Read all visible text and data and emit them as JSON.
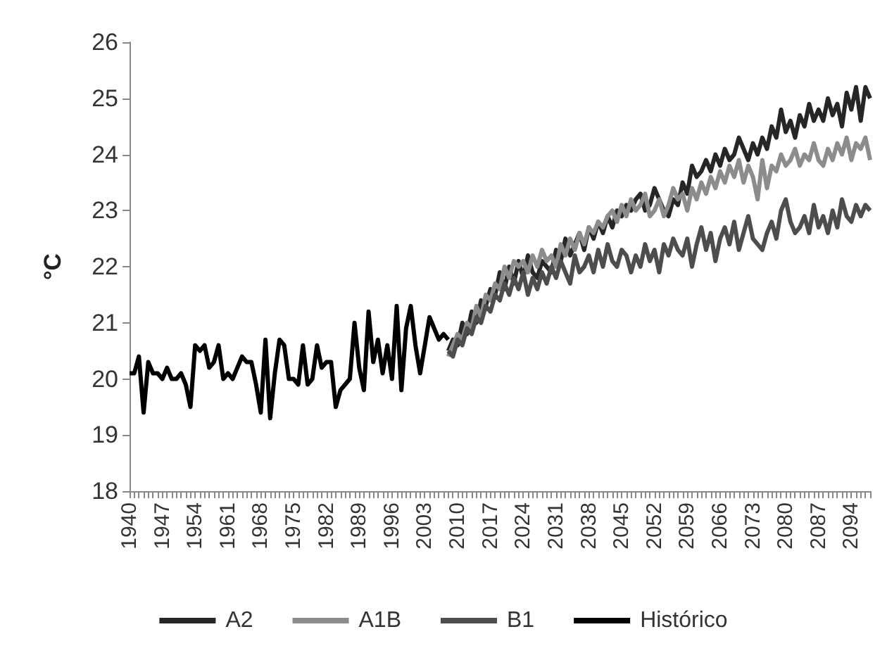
{
  "chart_data": {
    "type": "line",
    "ylabel": "°C",
    "ylim": [
      18,
      26
    ],
    "yticks": [
      18,
      19,
      20,
      21,
      22,
      23,
      24,
      25,
      26
    ],
    "grid": false,
    "legend": "bottom",
    "categories": [
      "1940",
      null,
      null,
      null,
      null,
      null,
      null,
      "1947",
      null,
      null,
      null,
      null,
      null,
      null,
      "1954",
      null,
      null,
      null,
      null,
      null,
      null,
      "1961",
      null,
      null,
      null,
      null,
      null,
      null,
      "1968",
      null,
      null,
      null,
      null,
      null,
      null,
      "1975",
      null,
      null,
      null,
      null,
      null,
      null,
      "1982",
      null,
      null,
      null,
      null,
      null,
      null,
      "1989",
      null,
      null,
      null,
      null,
      null,
      null,
      "1996",
      null,
      null,
      null,
      null,
      null,
      null,
      "2003",
      null,
      null,
      null,
      null,
      null,
      null,
      "2010",
      null,
      null,
      null,
      null,
      null,
      null,
      "2017",
      null,
      null,
      null,
      null,
      null,
      null,
      "2024",
      null,
      null,
      null,
      null,
      null,
      null,
      "2031",
      null,
      null,
      null,
      null,
      null,
      null,
      "2038",
      null,
      null,
      null,
      null,
      null,
      null,
      "2045",
      null,
      null,
      null,
      null,
      null,
      null,
      "2052",
      null,
      null,
      null,
      null,
      null,
      null,
      "2059",
      null,
      null,
      null,
      null,
      null,
      null,
      "2066",
      null,
      null,
      null,
      null,
      null,
      null,
      "2073",
      null,
      null,
      null,
      null,
      null,
      null,
      "2080",
      null,
      null,
      null,
      null,
      null,
      null,
      "2087",
      null,
      null,
      null,
      null,
      null,
      null,
      "2094",
      null,
      null,
      null,
      null
    ],
    "series": [
      {
        "name": "A2",
        "color": "#262626",
        "values": [
          null,
          null,
          null,
          null,
          null,
          null,
          null,
          null,
          null,
          null,
          null,
          null,
          null,
          null,
          null,
          null,
          null,
          null,
          null,
          null,
          null,
          null,
          null,
          null,
          null,
          null,
          null,
          null,
          null,
          null,
          null,
          null,
          null,
          null,
          null,
          null,
          null,
          null,
          null,
          null,
          null,
          null,
          null,
          null,
          null,
          null,
          null,
          null,
          null,
          null,
          null,
          null,
          null,
          null,
          null,
          null,
          null,
          null,
          null,
          null,
          null,
          null,
          null,
          null,
          null,
          null,
          null,
          null,
          20.5,
          20.7,
          20.6,
          21.0,
          20.8,
          21.2,
          21.0,
          21.4,
          21.3,
          21.6,
          21.5,
          21.9,
          21.6,
          22.0,
          21.7,
          22.1,
          21.8,
          22.2,
          21.9,
          21.8,
          22.1,
          22.0,
          21.9,
          22.3,
          22.1,
          22.5,
          22.2,
          22.4,
          22.6,
          22.3,
          22.7,
          22.5,
          22.8,
          22.6,
          22.9,
          22.7,
          23.0,
          22.9,
          23.1,
          23.0,
          23.2,
          23.3,
          23.0,
          23.1,
          23.4,
          23.2,
          23.0,
          22.9,
          23.2,
          23.1,
          23.5,
          23.3,
          23.8,
          23.6,
          23.7,
          23.9,
          23.7,
          24.0,
          23.8,
          24.1,
          23.9,
          24.0,
          24.3,
          24.1,
          23.9,
          24.2,
          24.0,
          24.3,
          24.1,
          24.5,
          24.3,
          24.8,
          24.4,
          24.6,
          24.3,
          24.7,
          24.5,
          24.9,
          24.6,
          24.8,
          24.6,
          25.0,
          24.7,
          24.9,
          24.5,
          25.1,
          24.8,
          25.2,
          24.6,
          25.2,
          25.0
        ]
      },
      {
        "name": "A1B",
        "color": "#8c8c8c",
        "values": [
          null,
          null,
          null,
          null,
          null,
          null,
          null,
          null,
          null,
          null,
          null,
          null,
          null,
          null,
          null,
          null,
          null,
          null,
          null,
          null,
          null,
          null,
          null,
          null,
          null,
          null,
          null,
          null,
          null,
          null,
          null,
          null,
          null,
          null,
          null,
          null,
          null,
          null,
          null,
          null,
          null,
          null,
          null,
          null,
          null,
          null,
          null,
          null,
          null,
          null,
          null,
          null,
          null,
          null,
          null,
          null,
          null,
          null,
          null,
          null,
          null,
          null,
          null,
          null,
          null,
          null,
          null,
          null,
          20.4,
          20.6,
          20.8,
          20.7,
          21.0,
          20.9,
          21.3,
          21.1,
          21.5,
          21.4,
          21.7,
          21.6,
          22.0,
          21.8,
          22.1,
          22.0,
          22.1,
          21.9,
          22.2,
          22.0,
          22.3,
          22.1,
          22.2,
          22.0,
          22.4,
          22.2,
          22.5,
          22.3,
          22.6,
          22.4,
          22.7,
          22.6,
          22.8,
          22.7,
          22.9,
          23.0,
          22.8,
          23.1,
          22.9,
          23.2,
          23.0,
          23.1,
          23.3,
          22.9,
          23.0,
          23.2,
          22.9,
          23.1,
          23.4,
          23.2,
          23.3,
          23.0,
          23.4,
          23.2,
          23.5,
          23.3,
          23.6,
          23.4,
          23.7,
          23.5,
          23.8,
          23.6,
          23.9,
          23.5,
          23.8,
          23.6,
          23.2,
          23.9,
          23.4,
          23.8,
          23.7,
          24.0,
          23.8,
          23.9,
          24.1,
          23.8,
          24.0,
          23.9,
          24.2,
          23.9,
          23.8,
          24.1,
          23.9,
          24.2,
          24.0,
          24.3,
          23.9,
          24.2,
          24.1,
          24.3,
          23.9
        ]
      },
      {
        "name": "B1",
        "color": "#4d4d4d",
        "values": [
          null,
          null,
          null,
          null,
          null,
          null,
          null,
          null,
          null,
          null,
          null,
          null,
          null,
          null,
          null,
          null,
          null,
          null,
          null,
          null,
          null,
          null,
          null,
          null,
          null,
          null,
          null,
          null,
          null,
          null,
          null,
          null,
          null,
          null,
          null,
          null,
          null,
          null,
          null,
          null,
          null,
          null,
          null,
          null,
          null,
          null,
          null,
          null,
          null,
          null,
          null,
          null,
          null,
          null,
          null,
          null,
          null,
          null,
          null,
          null,
          null,
          null,
          null,
          null,
          null,
          null,
          null,
          null,
          20.5,
          20.4,
          20.7,
          20.6,
          20.9,
          20.8,
          21.1,
          21.0,
          21.3,
          21.2,
          21.5,
          21.4,
          21.7,
          21.5,
          21.8,
          21.6,
          21.9,
          21.5,
          21.8,
          21.6,
          21.9,
          21.7,
          22.0,
          21.8,
          22.1,
          21.9,
          21.7,
          22.2,
          21.9,
          22.0,
          22.2,
          21.9,
          22.3,
          22.0,
          22.4,
          22.1,
          22.0,
          22.3,
          22.2,
          21.9,
          22.2,
          22.0,
          22.4,
          22.1,
          22.3,
          21.9,
          22.4,
          22.2,
          22.5,
          22.3,
          22.2,
          22.5,
          22.0,
          22.4,
          22.7,
          22.3,
          22.6,
          22.1,
          22.5,
          22.7,
          22.4,
          22.8,
          22.3,
          22.6,
          22.9,
          22.5,
          22.4,
          22.3,
          22.6,
          22.8,
          22.5,
          23.0,
          23.2,
          22.8,
          22.6,
          22.7,
          22.9,
          22.6,
          23.1,
          22.7,
          22.9,
          22.6,
          23.0,
          22.7,
          23.2,
          22.9,
          22.8,
          23.1,
          22.9,
          23.1,
          23.0
        ]
      },
      {
        "name": "Histórico",
        "color": "#000000",
        "values": [
          20.1,
          20.1,
          20.4,
          19.4,
          20.3,
          20.1,
          20.1,
          20.0,
          20.2,
          20.0,
          20.0,
          20.1,
          19.9,
          19.5,
          20.6,
          20.5,
          20.6,
          20.2,
          20.3,
          20.6,
          20.0,
          20.1,
          20.0,
          20.2,
          20.4,
          20.3,
          20.3,
          19.9,
          19.4,
          20.7,
          19.3,
          20.1,
          20.7,
          20.6,
          20.0,
          20.0,
          19.9,
          20.6,
          19.9,
          20.0,
          20.6,
          20.2,
          20.3,
          20.3,
          19.5,
          19.8,
          19.9,
          20.0,
          21.0,
          20.2,
          19.8,
          21.2,
          20.3,
          20.7,
          20.1,
          20.6,
          20.0,
          21.3,
          19.8,
          20.9,
          21.3,
          20.6,
          20.1,
          20.6,
          21.1,
          20.9,
          20.7,
          20.8,
          20.7,
          null,
          null,
          null,
          null,
          null,
          null,
          null,
          null,
          null,
          null,
          null,
          null,
          null,
          null,
          null,
          null,
          null,
          null,
          null,
          null,
          null,
          null,
          null,
          null,
          null,
          null,
          null,
          null,
          null,
          null,
          null,
          null,
          null,
          null,
          null,
          null,
          null,
          null,
          null,
          null,
          null,
          null,
          null,
          null,
          null,
          null,
          null,
          null,
          null,
          null,
          null,
          null,
          null,
          null,
          null,
          null,
          null,
          null,
          null,
          null,
          null,
          null,
          null,
          null,
          null,
          null,
          null,
          null,
          null,
          null,
          null,
          null,
          null,
          null,
          null,
          null,
          null,
          null,
          null,
          null,
          null,
          null,
          null,
          null,
          null,
          null,
          null,
          null,
          null,
          null
        ]
      }
    ]
  }
}
